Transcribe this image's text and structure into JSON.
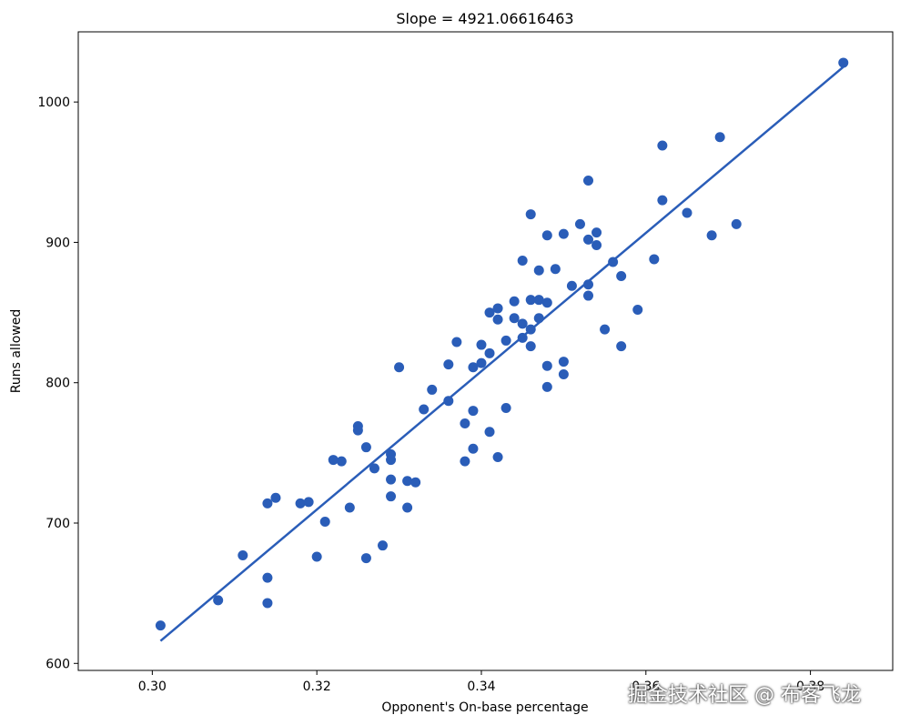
{
  "chart_data": {
    "type": "scatter",
    "title": "Slope = 4921.06616463",
    "xlabel": "Opponent's On-base percentage",
    "ylabel": "Runs allowed",
    "xlim": [
      0.291,
      0.39
    ],
    "ylim": [
      595,
      1050
    ],
    "xticks": [
      0.3,
      0.32,
      0.34,
      0.36,
      0.38
    ],
    "xtick_labels": [
      "0.30",
      "0.32",
      "0.34",
      "0.36",
      "0.38"
    ],
    "yticks": [
      600,
      700,
      800,
      900,
      1000
    ],
    "ytick_labels": [
      "600",
      "700",
      "800",
      "900",
      "1000"
    ],
    "grid": false,
    "point_color": "#2a5db8",
    "line_color": "#2a5db8",
    "points": [
      {
        "x": 0.301,
        "y": 627
      },
      {
        "x": 0.308,
        "y": 645
      },
      {
        "x": 0.311,
        "y": 677
      },
      {
        "x": 0.314,
        "y": 661
      },
      {
        "x": 0.314,
        "y": 643
      },
      {
        "x": 0.314,
        "y": 714
      },
      {
        "x": 0.315,
        "y": 718
      },
      {
        "x": 0.318,
        "y": 714
      },
      {
        "x": 0.319,
        "y": 715
      },
      {
        "x": 0.32,
        "y": 676
      },
      {
        "x": 0.321,
        "y": 701
      },
      {
        "x": 0.322,
        "y": 745
      },
      {
        "x": 0.323,
        "y": 744
      },
      {
        "x": 0.324,
        "y": 711
      },
      {
        "x": 0.325,
        "y": 769
      },
      {
        "x": 0.325,
        "y": 766
      },
      {
        "x": 0.326,
        "y": 754
      },
      {
        "x": 0.326,
        "y": 675
      },
      {
        "x": 0.327,
        "y": 739
      },
      {
        "x": 0.328,
        "y": 684
      },
      {
        "x": 0.329,
        "y": 749
      },
      {
        "x": 0.329,
        "y": 745
      },
      {
        "x": 0.329,
        "y": 731
      },
      {
        "x": 0.329,
        "y": 719
      },
      {
        "x": 0.33,
        "y": 811
      },
      {
        "x": 0.331,
        "y": 730
      },
      {
        "x": 0.331,
        "y": 711
      },
      {
        "x": 0.332,
        "y": 729
      },
      {
        "x": 0.333,
        "y": 781
      },
      {
        "x": 0.334,
        "y": 795
      },
      {
        "x": 0.336,
        "y": 813
      },
      {
        "x": 0.336,
        "y": 787
      },
      {
        "x": 0.337,
        "y": 829
      },
      {
        "x": 0.338,
        "y": 771
      },
      {
        "x": 0.338,
        "y": 744
      },
      {
        "x": 0.339,
        "y": 811
      },
      {
        "x": 0.339,
        "y": 780
      },
      {
        "x": 0.339,
        "y": 753
      },
      {
        "x": 0.34,
        "y": 827
      },
      {
        "x": 0.34,
        "y": 814
      },
      {
        "x": 0.341,
        "y": 850
      },
      {
        "x": 0.341,
        "y": 821
      },
      {
        "x": 0.341,
        "y": 765
      },
      {
        "x": 0.342,
        "y": 853
      },
      {
        "x": 0.342,
        "y": 845
      },
      {
        "x": 0.342,
        "y": 747
      },
      {
        "x": 0.343,
        "y": 830
      },
      {
        "x": 0.343,
        "y": 782
      },
      {
        "x": 0.344,
        "y": 858
      },
      {
        "x": 0.344,
        "y": 846
      },
      {
        "x": 0.345,
        "y": 887
      },
      {
        "x": 0.345,
        "y": 842
      },
      {
        "x": 0.345,
        "y": 832
      },
      {
        "x": 0.346,
        "y": 920
      },
      {
        "x": 0.346,
        "y": 859
      },
      {
        "x": 0.346,
        "y": 838
      },
      {
        "x": 0.346,
        "y": 826
      },
      {
        "x": 0.347,
        "y": 880
      },
      {
        "x": 0.347,
        "y": 859
      },
      {
        "x": 0.347,
        "y": 846
      },
      {
        "x": 0.348,
        "y": 905
      },
      {
        "x": 0.348,
        "y": 857
      },
      {
        "x": 0.348,
        "y": 812
      },
      {
        "x": 0.348,
        "y": 797
      },
      {
        "x": 0.349,
        "y": 881
      },
      {
        "x": 0.35,
        "y": 906
      },
      {
        "x": 0.35,
        "y": 815
      },
      {
        "x": 0.35,
        "y": 806
      },
      {
        "x": 0.351,
        "y": 869
      },
      {
        "x": 0.352,
        "y": 913
      },
      {
        "x": 0.353,
        "y": 944
      },
      {
        "x": 0.353,
        "y": 902
      },
      {
        "x": 0.353,
        "y": 870
      },
      {
        "x": 0.353,
        "y": 862
      },
      {
        "x": 0.354,
        "y": 907
      },
      {
        "x": 0.354,
        "y": 898
      },
      {
        "x": 0.355,
        "y": 838
      },
      {
        "x": 0.356,
        "y": 886
      },
      {
        "x": 0.357,
        "y": 876
      },
      {
        "x": 0.357,
        "y": 826
      },
      {
        "x": 0.359,
        "y": 852
      },
      {
        "x": 0.361,
        "y": 888
      },
      {
        "x": 0.362,
        "y": 969
      },
      {
        "x": 0.362,
        "y": 930
      },
      {
        "x": 0.365,
        "y": 921
      },
      {
        "x": 0.368,
        "y": 905
      },
      {
        "x": 0.369,
        "y": 975
      },
      {
        "x": 0.371,
        "y": 913
      },
      {
        "x": 0.384,
        "y": 1028
      }
    ],
    "fit_line": {
      "x": [
        0.301,
        0.384
      ],
      "y": [
        616,
        1025
      ]
    }
  },
  "watermark": "掘金技术社区 @ 布客飞龙"
}
